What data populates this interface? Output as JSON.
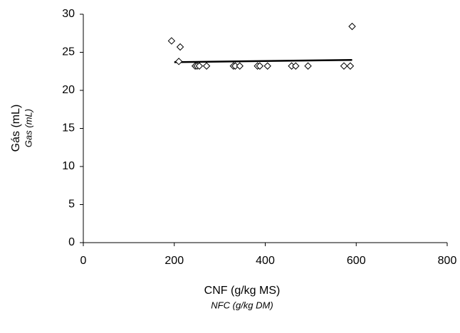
{
  "chart_data": {
    "type": "scatter",
    "x_label": "CNF (g/kg MS)",
    "x_label_en": "NFC (g/kg DM)",
    "y_label": "Gás (mL)",
    "y_label_en": "Gas (mL)",
    "x": [
      194,
      213,
      210,
      246,
      250,
      255,
      271,
      330,
      334,
      344,
      383,
      388,
      405,
      458,
      467,
      494,
      573,
      587,
      591
    ],
    "values": [
      26.5,
      25.7,
      23.8,
      23.2,
      23.2,
      23.2,
      23.2,
      23.2,
      23.2,
      23.2,
      23.2,
      23.2,
      23.2,
      23.2,
      23.2,
      23.2,
      23.2,
      23.2,
      28.4
    ],
    "color": "#000000",
    "trend_x": [
      200,
      591
    ],
    "trend_y": [
      23.7,
      24.0
    ],
    "xlim": [
      0,
      800
    ],
    "xticks": [
      0,
      200,
      400,
      600,
      800
    ],
    "ylim": [
      0,
      30
    ],
    "yticks": [
      0,
      5,
      10,
      15,
      20,
      25,
      30
    ]
  }
}
